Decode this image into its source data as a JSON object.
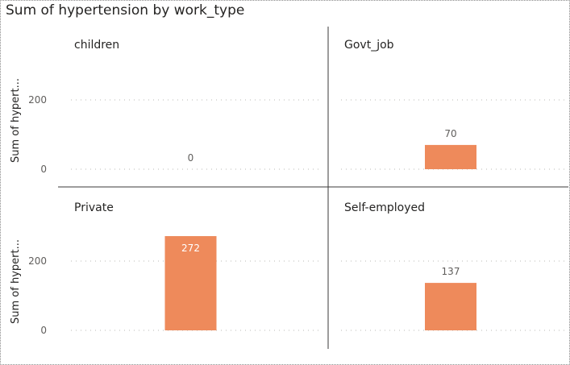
{
  "chart_data": {
    "type": "bar",
    "title": "Sum of hypertension by work_type",
    "ylabel": "Sum of hypert...",
    "ylim": [
      0,
      300
    ],
    "yticks": [
      0,
      200
    ],
    "grid": true,
    "bar_color": "#EE8A5B",
    "panels": [
      {
        "name": "children",
        "value": 0,
        "label": "0"
      },
      {
        "name": "Govt_job",
        "value": 70,
        "label": "70"
      },
      {
        "name": "Private",
        "value": 272,
        "label": "272"
      },
      {
        "name": "Self-employed",
        "value": 137,
        "label": "137"
      }
    ]
  }
}
